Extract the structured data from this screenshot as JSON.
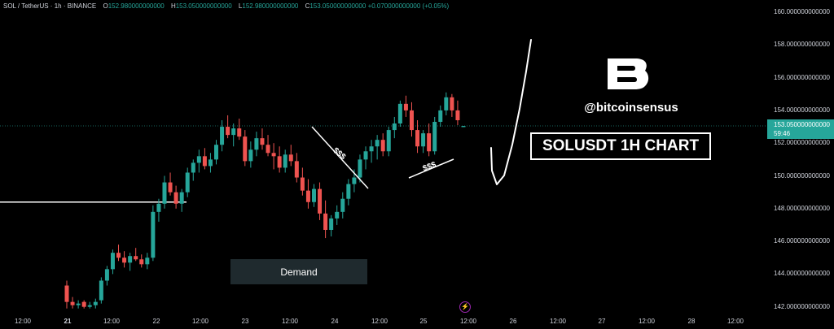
{
  "header": {
    "symbol": "SOL / TetherUS · 1h · BINANCE",
    "open_label": "O",
    "open": "152.980000000000",
    "high_label": "H",
    "high": "153.050000000000",
    "low_label": "L",
    "low": "152.980000000000",
    "close_label": "C",
    "close": "153.050000000000",
    "change": "+0.070000000000 (+0.05%)"
  },
  "current_price": {
    "value": "153.050000000000",
    "countdown": "59:46"
  },
  "annotations": {
    "demand_label": "Demand",
    "title": "SOLUSDT 1H CHART",
    "handle": "@bitcoinsensus",
    "liquidity_upper": "$$$",
    "liquidity_lower": "$$$"
  },
  "colors": {
    "up": "#26a69a",
    "down": "#ef5350",
    "background": "#000000",
    "text": "#d1d4dc"
  },
  "chart_data": {
    "type": "candlestick",
    "y_axis_labels": [
      "160.000000000000",
      "158.000000000000",
      "156.000000000000",
      "154.000000000000",
      "152.000000000000",
      "150.000000000000",
      "148.000000000000",
      "146.000000000000",
      "144.000000000000",
      "142.000000000000"
    ],
    "y_range": [
      141.5,
      160.5
    ],
    "x_axis_labels": [
      {
        "text": "12:00",
        "bold": false
      },
      {
        "text": "21",
        "bold": true
      },
      {
        "text": "12:00",
        "bold": false
      },
      {
        "text": "22",
        "bold": false
      },
      {
        "text": "12:00",
        "bold": false
      },
      {
        "text": "23",
        "bold": false
      },
      {
        "text": "12:00",
        "bold": false
      },
      {
        "text": "24",
        "bold": false
      },
      {
        "text": "12:00",
        "bold": false
      },
      {
        "text": "25",
        "bold": false
      },
      {
        "text": "12:00",
        "bold": false
      },
      {
        "text": "26",
        "bold": false
      },
      {
        "text": "12:00",
        "bold": false
      },
      {
        "text": "27",
        "bold": false
      },
      {
        "text": "12:00",
        "bold": false
      },
      {
        "text": "28",
        "bold": false
      },
      {
        "text": "12:00",
        "bold": false
      }
    ],
    "current_price": 153.05,
    "horizontal_level": 148.4,
    "demand_zone": [
      143.5,
      145.0
    ],
    "candles": [
      [
        143.3,
        143.6,
        141.9,
        142.3
      ],
      [
        142.3,
        142.6,
        141.9,
        142.1
      ],
      [
        142.1,
        142.4,
        141.9,
        142.2
      ],
      [
        142.3,
        142.4,
        141.9,
        142.0
      ],
      [
        142.0,
        142.3,
        141.9,
        142.1
      ],
      [
        142.1,
        142.5,
        141.9,
        142.3
      ],
      [
        142.4,
        143.8,
        142.2,
        143.6
      ],
      [
        143.6,
        144.5,
        143.3,
        144.3
      ],
      [
        144.3,
        145.5,
        144.0,
        145.3
      ],
      [
        145.3,
        145.8,
        144.8,
        145.0
      ],
      [
        145.0,
        145.4,
        144.4,
        144.7
      ],
      [
        144.7,
        145.3,
        144.2,
        145.1
      ],
      [
        145.1,
        145.6,
        144.8,
        144.9
      ],
      [
        144.9,
        145.2,
        144.4,
        144.6
      ],
      [
        144.6,
        145.3,
        144.3,
        145.0
      ],
      [
        145.0,
        148.2,
        144.8,
        147.8
      ],
      [
        147.8,
        148.6,
        147.2,
        148.3
      ],
      [
        148.3,
        150.0,
        148.0,
        149.6
      ],
      [
        149.6,
        150.2,
        148.8,
        149.0
      ],
      [
        149.0,
        149.4,
        148.0,
        148.3
      ],
      [
        148.3,
        149.2,
        147.8,
        149.0
      ],
      [
        149.0,
        150.5,
        148.7,
        150.2
      ],
      [
        150.2,
        151.0,
        149.7,
        150.8
      ],
      [
        150.8,
        151.6,
        150.2,
        151.2
      ],
      [
        151.2,
        151.7,
        150.4,
        150.6
      ],
      [
        150.6,
        151.4,
        150.2,
        151.0
      ],
      [
        151.0,
        152.2,
        150.7,
        151.9
      ],
      [
        151.9,
        153.4,
        151.5,
        153.0
      ],
      [
        153.0,
        153.7,
        152.3,
        152.5
      ],
      [
        152.5,
        153.2,
        151.8,
        152.9
      ],
      [
        152.9,
        153.5,
        152.2,
        152.4
      ],
      [
        152.4,
        152.8,
        150.6,
        150.9
      ],
      [
        150.9,
        152.1,
        150.5,
        151.6
      ],
      [
        151.6,
        152.7,
        151.2,
        152.3
      ],
      [
        152.3,
        152.9,
        151.6,
        151.9
      ],
      [
        151.9,
        152.5,
        151.2,
        151.4
      ],
      [
        151.4,
        152.0,
        150.4,
        151.2
      ],
      [
        151.2,
        151.8,
        150.2,
        150.5
      ],
      [
        150.5,
        151.6,
        150.2,
        151.3
      ],
      [
        151.3,
        151.9,
        150.6,
        150.9
      ],
      [
        150.9,
        151.4,
        149.6,
        149.9
      ],
      [
        149.9,
        150.5,
        148.8,
        149.1
      ],
      [
        149.1,
        149.8,
        148.0,
        148.4
      ],
      [
        148.4,
        149.5,
        148.1,
        149.2
      ],
      [
        149.2,
        149.6,
        147.3,
        147.7
      ],
      [
        147.7,
        148.5,
        146.2,
        146.7
      ],
      [
        146.7,
        147.6,
        146.3,
        147.4
      ],
      [
        147.4,
        148.2,
        147.0,
        147.8
      ],
      [
        147.8,
        149.0,
        147.4,
        148.6
      ],
      [
        148.6,
        149.8,
        148.2,
        149.5
      ],
      [
        149.5,
        150.4,
        149.0,
        149.9
      ],
      [
        149.9,
        151.3,
        149.6,
        151.0
      ],
      [
        151.0,
        151.8,
        150.4,
        151.5
      ],
      [
        151.5,
        152.2,
        150.8,
        151.8
      ],
      [
        151.8,
        152.5,
        151.0,
        152.2
      ],
      [
        152.2,
        152.6,
        151.2,
        151.5
      ],
      [
        151.5,
        153.0,
        151.2,
        152.8
      ],
      [
        152.8,
        153.6,
        152.3,
        153.2
      ],
      [
        153.2,
        154.6,
        153.0,
        154.4
      ],
      [
        154.4,
        154.9,
        153.6,
        154.0
      ],
      [
        154.0,
        154.5,
        152.4,
        152.8
      ],
      [
        152.8,
        153.4,
        151.4,
        151.8
      ],
      [
        151.8,
        152.8,
        151.4,
        152.6
      ],
      [
        152.6,
        153.2,
        151.2,
        151.5
      ],
      [
        151.5,
        153.6,
        151.3,
        153.3
      ],
      [
        153.3,
        154.3,
        153.0,
        154.0
      ],
      [
        154.0,
        155.1,
        153.7,
        154.8
      ],
      [
        154.8,
        155.0,
        153.6,
        154.0
      ],
      [
        154.0,
        154.6,
        153.1,
        153.4
      ],
      [
        152.98,
        153.05,
        152.98,
        153.05
      ]
    ],
    "projection": [
      [
        603,
        182
      ],
      [
        604,
        210
      ],
      [
        610,
        227
      ],
      [
        619,
        216
      ],
      [
        629,
        178
      ],
      [
        638,
        134
      ],
      [
        646,
        88
      ],
      [
        652,
        49
      ]
    ]
  }
}
